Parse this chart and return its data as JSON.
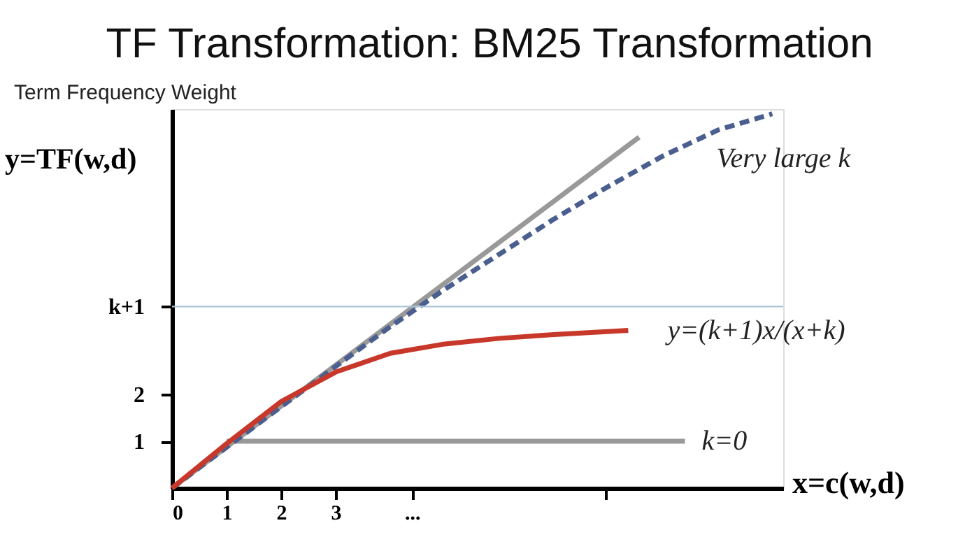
{
  "chart_data": {
    "type": "line",
    "title": "TF Transformation: BM25 Transformation",
    "subtitle": "Term Frequency Weight",
    "xlabel": "x=c(w,d)",
    "ylabel": "y=TF(w,d)",
    "xlim": [
      0,
      11.2
    ],
    "ylim": [
      0,
      8.1
    ],
    "xticks": [
      0,
      1,
      2,
      3,
      {
        "value": 4.4,
        "label": "..."
      },
      {
        "value": 7.95,
        "label": null
      }
    ],
    "yticks": [
      1,
      2,
      {
        "value": 3.88,
        "label": "k+1"
      }
    ],
    "grid": false,
    "marker": "none",
    "series": [
      {
        "color": "#999999",
        "line_style": "solid",
        "x": [
          0,
          8.56
        ],
        "values": [
          0,
          7.5
        ]
      },
      {
        "color": "#999999",
        "line_style": "solid",
        "x": [
          1,
          9.4
        ],
        "values": [
          1,
          1
        ]
      },
      {
        "color": "#4a5f8f",
        "line_style": "dashed",
        "x": [
          0,
          1,
          2,
          3,
          4,
          5,
          6,
          7,
          8,
          9,
          10,
          11
        ],
        "values": [
          0,
          0.87,
          1.74,
          2.6,
          3.45,
          4.25,
          5.0,
          5.75,
          6.45,
          7.1,
          7.65,
          8.0
        ]
      },
      {
        "color": "#c8382a",
        "line_style": "solid",
        "x": [
          0,
          1,
          2,
          3,
          4,
          5,
          6,
          7,
          8.36
        ],
        "values": [
          0,
          0.95,
          1.85,
          2.48,
          2.88,
          3.08,
          3.2,
          3.28,
          3.37
        ]
      }
    ],
    "ref_lines": [
      {
        "axis": "y",
        "value": 3.88,
        "color": "#a9c4d8",
        "line_style": "solid"
      }
    ],
    "annotations": [
      {
        "text": "Very large k",
        "x": 11,
        "y": 8.0
      },
      {
        "text": "y=(k+1)x/(x+k)",
        "x": 8.36,
        "y": 3.37
      },
      {
        "text": "k=0",
        "x": 9.4,
        "y": 1
      }
    ]
  }
}
